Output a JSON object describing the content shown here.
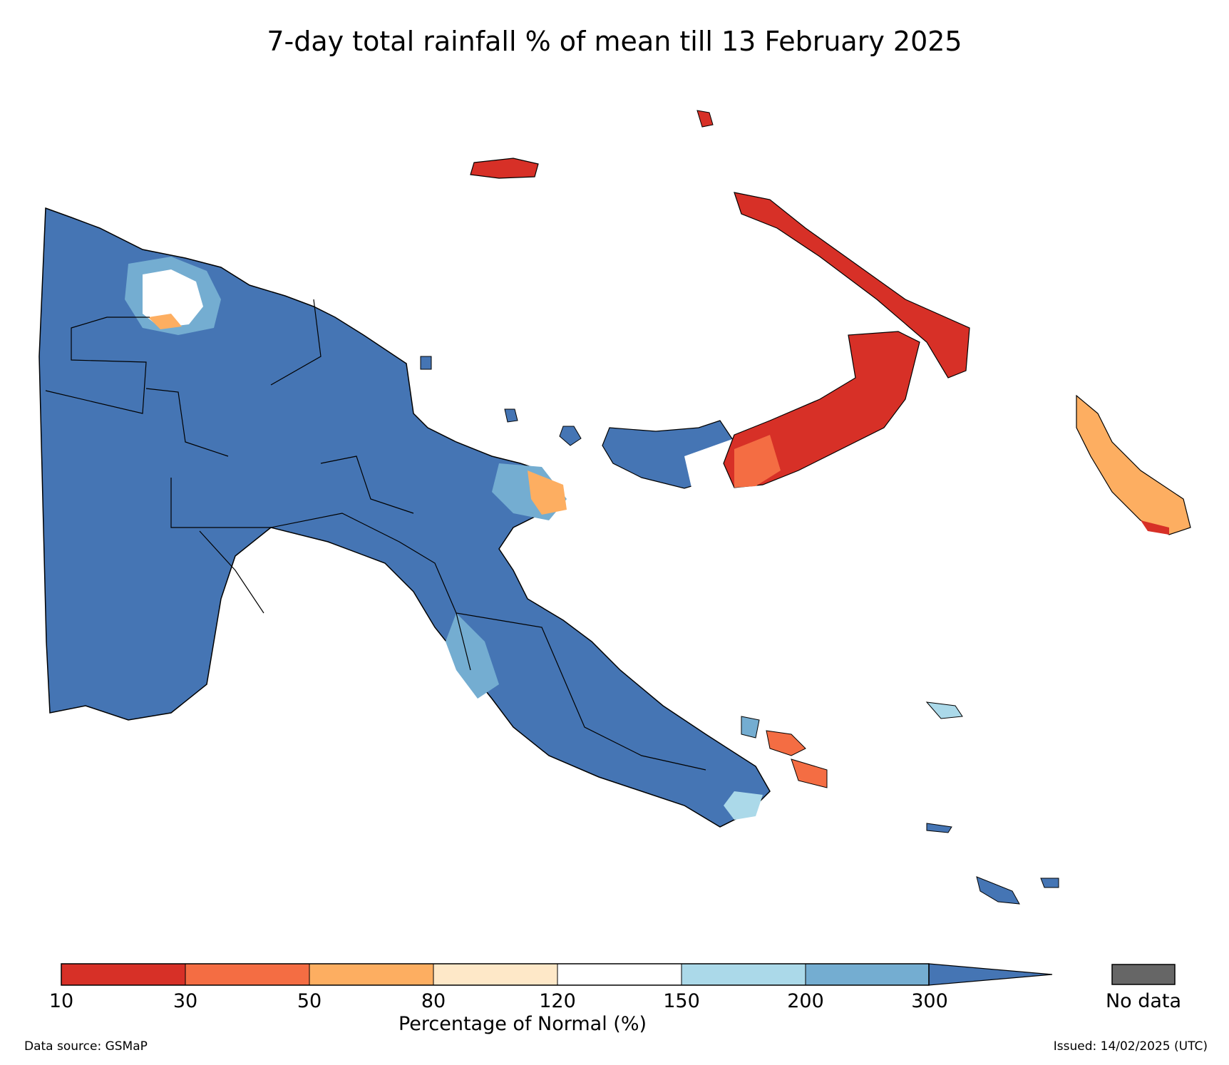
{
  "title": "7-day total rainfall % of mean till 13 February 2025",
  "legend": {
    "label": "Percentage of Normal (%)",
    "ticks": [
      "10",
      "30",
      "50",
      "80",
      "120",
      "150",
      "200",
      "300"
    ],
    "bins": [
      {
        "range": "10-30",
        "color": "#d73027"
      },
      {
        "range": "30-50",
        "color": "#f46d43"
      },
      {
        "range": "50-80",
        "color": "#fdae61"
      },
      {
        "range": "80-120",
        "color": "#fee8c8"
      },
      {
        "range": "120-150",
        "color": "#ffffff"
      },
      {
        "range": "150-200",
        "color": "#abd9e9"
      },
      {
        "range": "200-300",
        "color": "#74add1"
      },
      {
        "range": ">300",
        "color": "#4575b4"
      }
    ],
    "no_data": {
      "label": "No data",
      "color": "#666666"
    }
  },
  "regions": {
    "mainland": "#4575b4",
    "new_britain_west": "#4575b4",
    "new_britain_east": "#d73027",
    "new_ireland": "#d73027",
    "manus": "#d73027",
    "bougainville": "#fdae61",
    "milne_bay_islands": "#f46d43"
  },
  "footer": {
    "source": "Data source: GSMaP",
    "issued": "Issued: 14/02/2025 (UTC)"
  }
}
